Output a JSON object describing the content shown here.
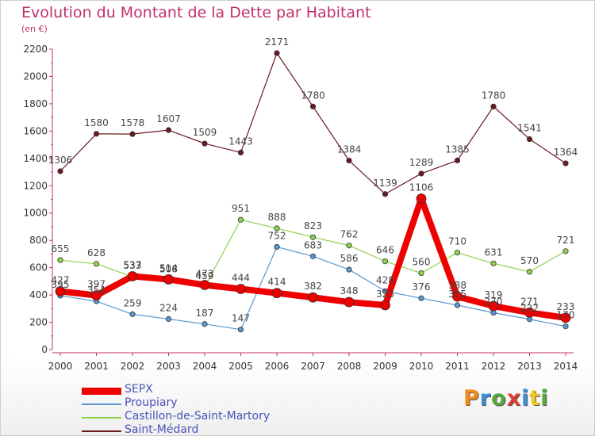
{
  "title": "Evolution du Montant de la Dette par Habitant",
  "subtitle": "(en €)",
  "logo": {
    "text": "Proxiti",
    "colors": [
      "#f08c1e",
      "#3a8ed8",
      "#56a83c",
      "#e23c32",
      "#3a8ed8",
      "#f0c81e",
      "#56a83c"
    ]
  },
  "chart_data": {
    "type": "line",
    "x": [
      "2000",
      "2001",
      "2002",
      "2003",
      "2004",
      "2005",
      "2006",
      "2007",
      "2008",
      "2009",
      "2010",
      "2011",
      "2012",
      "2013",
      "2014"
    ],
    "ylim": [
      0,
      2200
    ],
    "yticks": [
      0,
      200,
      400,
      600,
      800,
      1000,
      1200,
      1400,
      1600,
      1800,
      2000,
      2200
    ],
    "grid": false,
    "legend_position": "bottom-left",
    "series": [
      {
        "name": "Saint-Médard",
        "color": "#6b1a22",
        "width": 1.2,
        "marker": 3.2,
        "values": [
          1306,
          1580,
          1578,
          1607,
          1509,
          1443,
          2171,
          1780,
          1384,
          1139,
          1289,
          1385,
          1780,
          1541,
          1364
        ]
      },
      {
        "name": "Castillon-de-Saint-Martory",
        "color": "#8fd14f",
        "width": 1.2,
        "marker": 3.2,
        "values": [
          655,
          628,
          533,
          508,
          459,
          951,
          888,
          823,
          762,
          646,
          560,
          710,
          631,
          570,
          721
        ]
      },
      {
        "name": "Proupiary",
        "color": "#5b97cf",
        "width": 1.2,
        "marker": 3.2,
        "values": [
          395,
          354,
          259,
          224,
          187,
          147,
          752,
          683,
          586,
          428,
          376,
          325,
          270,
          222,
          170
        ]
      },
      {
        "name": "SEPX",
        "color": "#ee0000",
        "width": 8,
        "marker": 6,
        "values": [
          427,
          397,
          537,
          514,
          473,
          444,
          414,
          382,
          348,
          325,
          1106,
          388,
          319,
          271,
          233
        ]
      }
    ]
  }
}
